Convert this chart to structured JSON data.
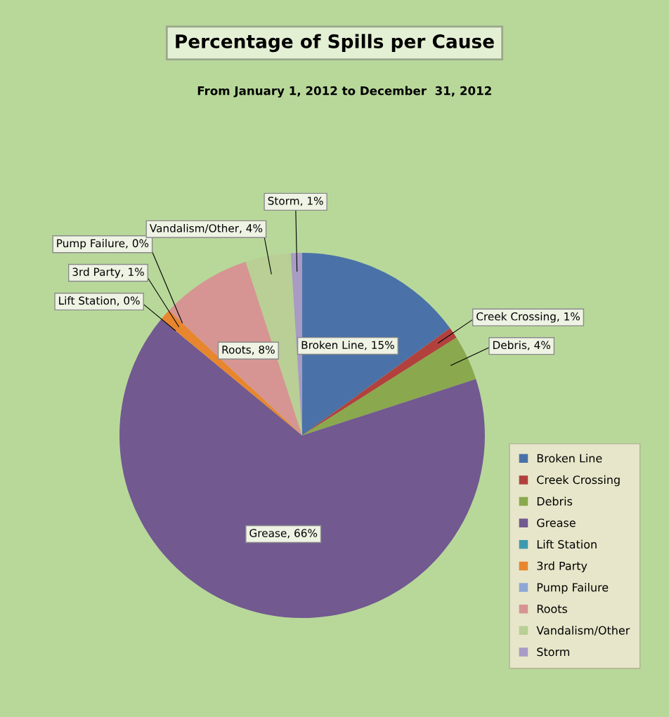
{
  "chart_data": {
    "type": "pie",
    "title": "Percentage of Spills per Cause",
    "subtitle": "From January 1, 2012 to December  31, 2012",
    "categories": [
      "Broken Line",
      "Creek Crossing",
      "Debris",
      "Grease",
      "Lift Station",
      "3rd Party",
      "Pump Failure",
      "Roots",
      "Vandalism/Other",
      "Storm"
    ],
    "values": [
      15,
      1,
      4,
      66,
      0,
      1,
      0,
      8,
      4,
      1
    ],
    "colors": [
      "#4a72a8",
      "#b2413e",
      "#8aa84e",
      "#725990",
      "#3f9ab0",
      "#e8862f",
      "#8ea8d4",
      "#d69592",
      "#b9cf95",
      "#a89bc4"
    ],
    "value_labels": [
      "Broken Line, 15%",
      "Creek Crossing, 1%",
      "Debris, 4%",
      "Grease, 66%",
      "Lift Station, 0%",
      "3rd Party, 1%",
      "Pump Failure, 0%",
      "Roots, 8%",
      "Vandalism/Other, 4%",
      "Storm, 1%"
    ],
    "legend": "bottom right"
  }
}
